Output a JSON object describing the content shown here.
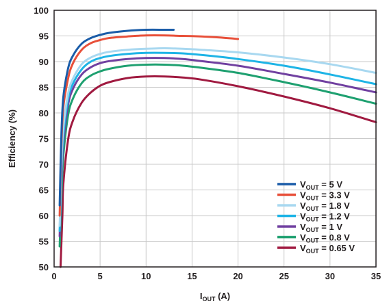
{
  "chart_data": {
    "type": "line",
    "xlabel": {
      "main": "I",
      "sub": "OUT",
      "suffix": " (A)"
    },
    "ylabel": "Efficiency (%)",
    "xlim": [
      0,
      35
    ],
    "ylim": [
      50,
      100
    ],
    "xticks": [
      "0",
      "5",
      "10",
      "15",
      "20",
      "25",
      "30",
      "35"
    ],
    "yticks": [
      "50",
      "55",
      "60",
      "65",
      "70",
      "75",
      "80",
      "85",
      "90",
      "95",
      "100"
    ],
    "grid": true,
    "legend_position": "bottom-right",
    "series": [
      {
        "name": {
          "main": "V",
          "sub": "OUT",
          "suffix": " = 5 V"
        },
        "color": "#1a5ca8",
        "x": [
          0.6,
          0.8,
          1.0,
          1.5,
          2.0,
          3.0,
          4.0,
          5.0,
          6.0,
          8.0,
          10.0,
          12.0,
          13.0
        ],
        "y": [
          62,
          76,
          83,
          88.5,
          91,
          93.5,
          94.6,
          95.2,
          95.6,
          96.0,
          96.2,
          96.2,
          96.2
        ]
      },
      {
        "name": {
          "main": "V",
          "sub": "OUT",
          "suffix": " = 3.3 V"
        },
        "color": "#e8503a",
        "x": [
          0.6,
          0.8,
          1.0,
          1.5,
          2.0,
          3.0,
          4.0,
          5.0,
          6.0,
          8.0,
          10.0,
          12.0,
          14.0,
          16.0,
          18.0,
          20.0
        ],
        "y": [
          60,
          74,
          81,
          86.5,
          89.5,
          92.3,
          93.6,
          94.2,
          94.6,
          94.9,
          95.1,
          95.1,
          95.0,
          94.9,
          94.7,
          94.4
        ]
      },
      {
        "name": {
          "main": "V",
          "sub": "OUT",
          "suffix": " = 1.8 V"
        },
        "color": "#a8d8f0",
        "x": [
          0.6,
          0.8,
          1.0,
          1.5,
          2.0,
          3.0,
          4.0,
          5.0,
          6.0,
          8.0,
          10.0,
          12.0,
          14.0,
          16.0,
          20.0,
          25.0,
          30.0,
          35.0
        ],
        "y": [
          58,
          70,
          77,
          83.5,
          86.5,
          89.5,
          90.8,
          91.5,
          91.9,
          92.3,
          92.5,
          92.6,
          92.5,
          92.3,
          91.8,
          90.8,
          89.5,
          87.8
        ]
      },
      {
        "name": {
          "main": "V",
          "sub": "OUT",
          "suffix": " = 1.2 V"
        },
        "color": "#1eb4e6",
        "x": [
          0.6,
          0.8,
          1.0,
          1.5,
          2.0,
          3.0,
          4.0,
          5.0,
          6.0,
          8.0,
          10.0,
          12.0,
          14.0,
          16.0,
          20.0,
          25.0,
          30.0,
          35.0
        ],
        "y": [
          57,
          68.5,
          75.5,
          82.5,
          85.5,
          88.5,
          90.0,
          90.7,
          91.1,
          91.5,
          91.7,
          91.7,
          91.6,
          91.3,
          90.5,
          89.2,
          87.5,
          85.6
        ]
      },
      {
        "name": {
          "main": "V",
          "sub": "OUT",
          "suffix": " = 1 V"
        },
        "color": "#7040a0",
        "x": [
          0.6,
          0.8,
          1.0,
          1.5,
          2.0,
          3.0,
          4.0,
          5.0,
          6.0,
          8.0,
          10.0,
          12.0,
          14.0,
          16.0,
          20.0,
          25.0,
          30.0,
          35.0
        ],
        "y": [
          56,
          67,
          74,
          81.3,
          84.5,
          87.5,
          88.9,
          89.7,
          90.1,
          90.5,
          90.7,
          90.7,
          90.5,
          90.1,
          89.2,
          87.6,
          85.9,
          84.0
        ]
      },
      {
        "name": {
          "main": "V",
          "sub": "OUT",
          "suffix": " = 0.8 V"
        },
        "color": "#1ea070",
        "x": [
          0.6,
          0.8,
          1.0,
          1.5,
          2.0,
          3.0,
          4.0,
          5.0,
          6.0,
          8.0,
          10.0,
          12.0,
          14.0,
          16.0,
          20.0,
          25.0,
          30.0,
          35.0
        ],
        "y": [
          54,
          64,
          71.5,
          79.3,
          82.6,
          85.8,
          87.3,
          88.1,
          88.6,
          89.2,
          89.4,
          89.4,
          89.2,
          88.8,
          87.8,
          86.0,
          84.0,
          81.8
        ]
      },
      {
        "name": {
          "main": "V",
          "sub": "OUT",
          "suffix": " = 0.65 V"
        },
        "color": "#a01a40",
        "x": [
          0.7,
          0.9,
          1.0,
          1.5,
          2.0,
          3.0,
          4.0,
          5.0,
          6.0,
          8.0,
          10.0,
          12.0,
          14.0,
          16.0,
          20.0,
          25.0,
          30.0,
          35.0
        ],
        "y": [
          50,
          60,
          66,
          74.5,
          78.3,
          82.0,
          84.0,
          85.3,
          86.0,
          86.8,
          87.1,
          87.1,
          86.9,
          86.5,
          85.2,
          83.2,
          80.9,
          78.2
        ]
      }
    ]
  }
}
